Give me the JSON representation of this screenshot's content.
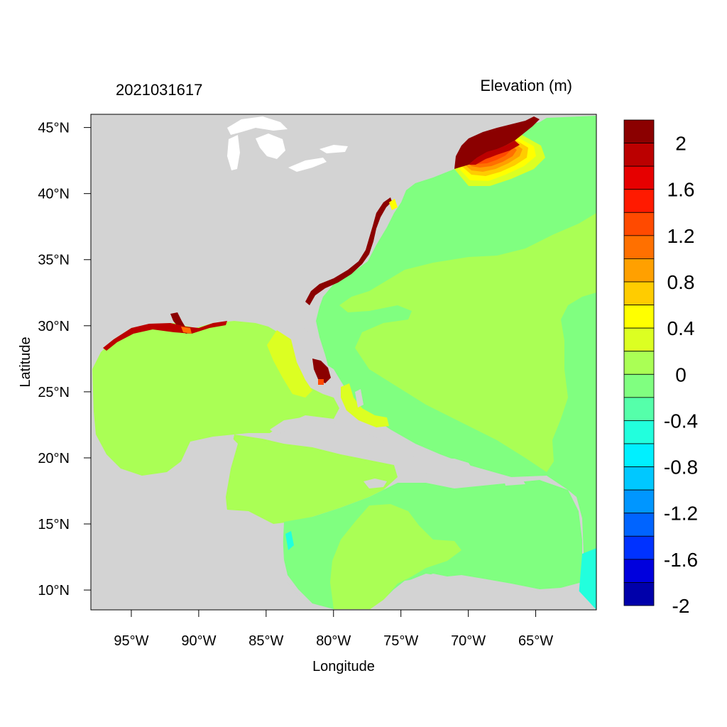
{
  "map": {
    "timestamp": "2021031617",
    "variable_label": "Elevation (m)",
    "xlabel": "Longitude",
    "ylabel": "Latitude",
    "lon_range": [
      -98,
      -60.5
    ],
    "lat_range": [
      8.5,
      46
    ],
    "lon_ticks": [
      -95,
      -90,
      -85,
      -80,
      -75,
      -70,
      -65
    ],
    "lat_ticks": [
      10,
      15,
      20,
      25,
      30,
      35,
      40,
      45
    ],
    "lon_tick_labels": [
      "95°W",
      "90°W",
      "85°W",
      "80°W",
      "75°W",
      "70°W",
      "65°W"
    ],
    "lat_tick_labels": [
      "10°N",
      "15°N",
      "20°N",
      "25°N",
      "30°N",
      "35°N",
      "40°N",
      "45°N"
    ],
    "land_color": "#d3d3d3"
  },
  "colorbar": {
    "levels_top_to_bottom": [
      {
        "color": "#8b0000"
      },
      {
        "color": "#bb0000"
      },
      {
        "color": "#e60000"
      },
      {
        "color": "#ff1a00"
      },
      {
        "color": "#ff4a00"
      },
      {
        "color": "#ff7000"
      },
      {
        "color": "#ffa000"
      },
      {
        "color": "#ffcc00"
      },
      {
        "color": "#ffff00"
      },
      {
        "color": "#dcff22"
      },
      {
        "color": "#aaff55"
      },
      {
        "color": "#80ff80"
      },
      {
        "color": "#55ffaa"
      },
      {
        "color": "#22ffdd"
      },
      {
        "color": "#00f0ff"
      },
      {
        "color": "#00c8ff"
      },
      {
        "color": "#0096ff"
      },
      {
        "color": "#0064ff"
      },
      {
        "color": "#0032ff"
      },
      {
        "color": "#0000dd"
      },
      {
        "color": "#0000aa"
      }
    ],
    "labels": [
      "2",
      "1.6",
      "1.2",
      "0.8",
      "0.4",
      "0",
      "-0.4",
      "-0.8",
      "-1.2",
      "-1.6",
      "-2"
    ]
  }
}
